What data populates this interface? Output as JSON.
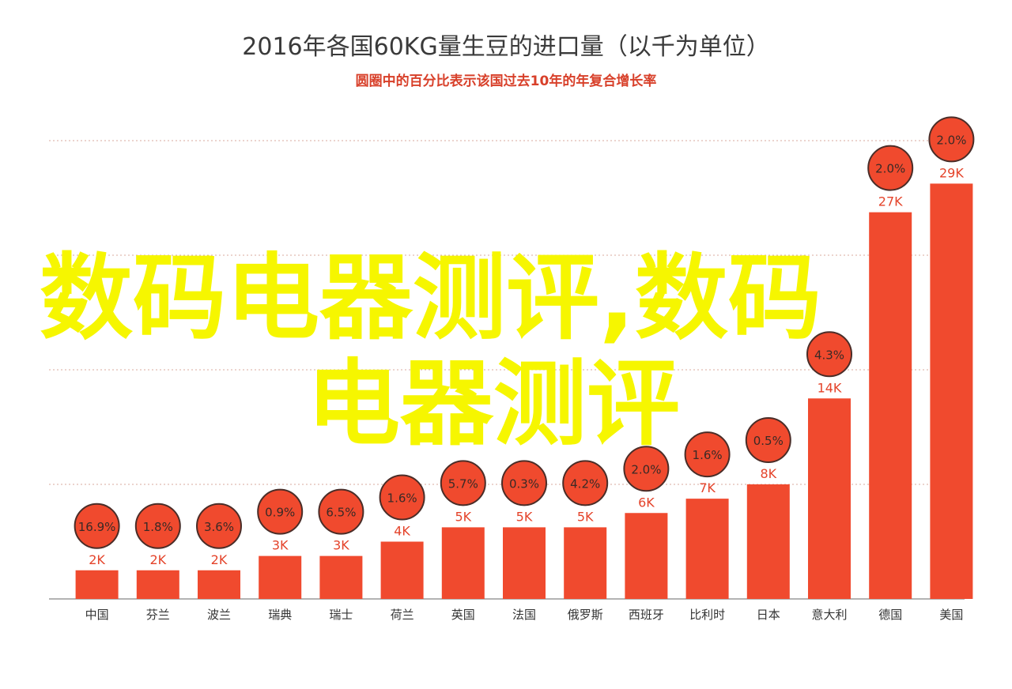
{
  "colors": {
    "bar": "#f04a2e",
    "bubble_fill": "#f04a2e",
    "bubble_stroke": "#4a2d28",
    "bubble_text": "#3a2a26",
    "grid": "#d9a89e",
    "axis": "#9a9a9a",
    "title": "#3a3a3a",
    "subtitle": "#d8402a",
    "watermark": "#f6f600"
  },
  "watermark": {
    "line1": "数码电器测评,数码",
    "line2": "电器测评"
  },
  "chart_data": {
    "type": "bar",
    "title": "2016年各国60KG量生豆的进口量（以千为单位）",
    "subtitle": "圆圈中的百分比表示该国过去10年的年复合增长率",
    "categories": [
      "中国",
      "芬兰",
      "波兰",
      "瑞典",
      "瑞士",
      "荷兰",
      "英国",
      "法国",
      "俄罗斯",
      "西班牙",
      "比利时",
      "日本",
      "意大利",
      "德国",
      "美国"
    ],
    "values": [
      2,
      2,
      2,
      3,
      3,
      4,
      5,
      5,
      5,
      6,
      7,
      8,
      14,
      27,
      29
    ],
    "value_labels": [
      "2K",
      "2K",
      "2K",
      "3K",
      "3K",
      "4K",
      "5K",
      "5K",
      "5K",
      "6K",
      "7K",
      "8K",
      "14K",
      "27K",
      "29K"
    ],
    "growth_rates": [
      "16.9%",
      "1.8%",
      "3.6%",
      "0.9%",
      "6.5%",
      "1.6%",
      "5.7%",
      "0.3%",
      "4.2%",
      "2.0%",
      "1.6%",
      "0.5%",
      "4.3%",
      "2.0%",
      "2.0%"
    ],
    "ylim": [
      0,
      32
    ],
    "grid": true,
    "legend": "none"
  }
}
